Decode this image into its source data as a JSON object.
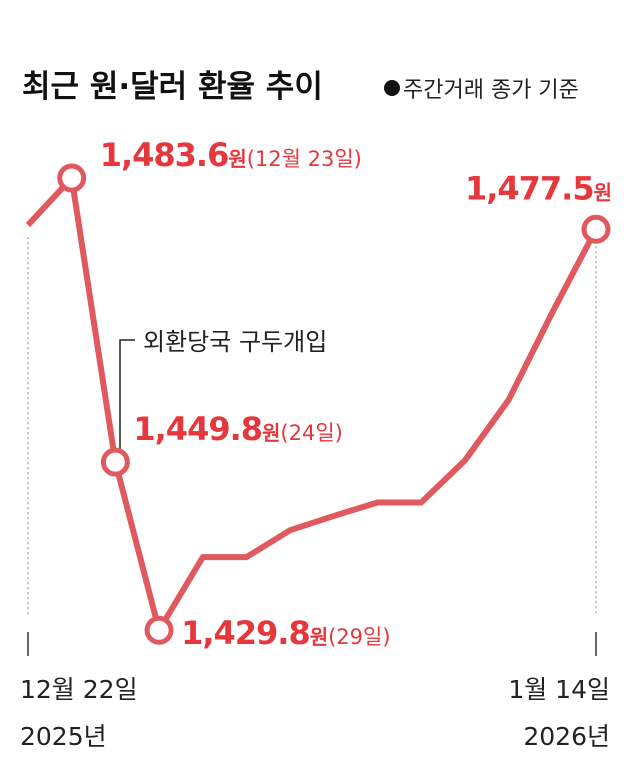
{
  "chart_data": {
    "type": "line",
    "title": "최근 원·달러 환율 추이",
    "subtitle": "주간거래 종가 기준",
    "categories": [
      "12월 22일",
      null,
      null,
      null,
      null,
      null,
      null,
      null,
      null,
      null,
      null,
      null,
      null,
      "1월 14일"
    ],
    "year_labels": [
      "2025년",
      "2026년"
    ],
    "values": [
      1478.0,
      1483.6,
      1449.8,
      1429.8,
      1438.5,
      1438.5,
      1441.7,
      1443.4,
      1445.0,
      1445.0,
      1450.0,
      1457.2,
      1467.6,
      1477.5
    ],
    "value_labels": [
      null,
      "1,483.6",
      "1,449.8",
      "1,429.8",
      null,
      null,
      null,
      null,
      null,
      null,
      null,
      null,
      null,
      "1,477.5"
    ],
    "unit": "원",
    "label_notes": [
      null,
      "(12월 23일)",
      "(24일)",
      "(29일)",
      null,
      null,
      null,
      null,
      null,
      null,
      null,
      null,
      null,
      null
    ],
    "annotation": "외환당국 구두개입",
    "color": "#e0595e",
    "label_color": "#e5373c",
    "ylim": [
      1424,
      1488
    ]
  }
}
